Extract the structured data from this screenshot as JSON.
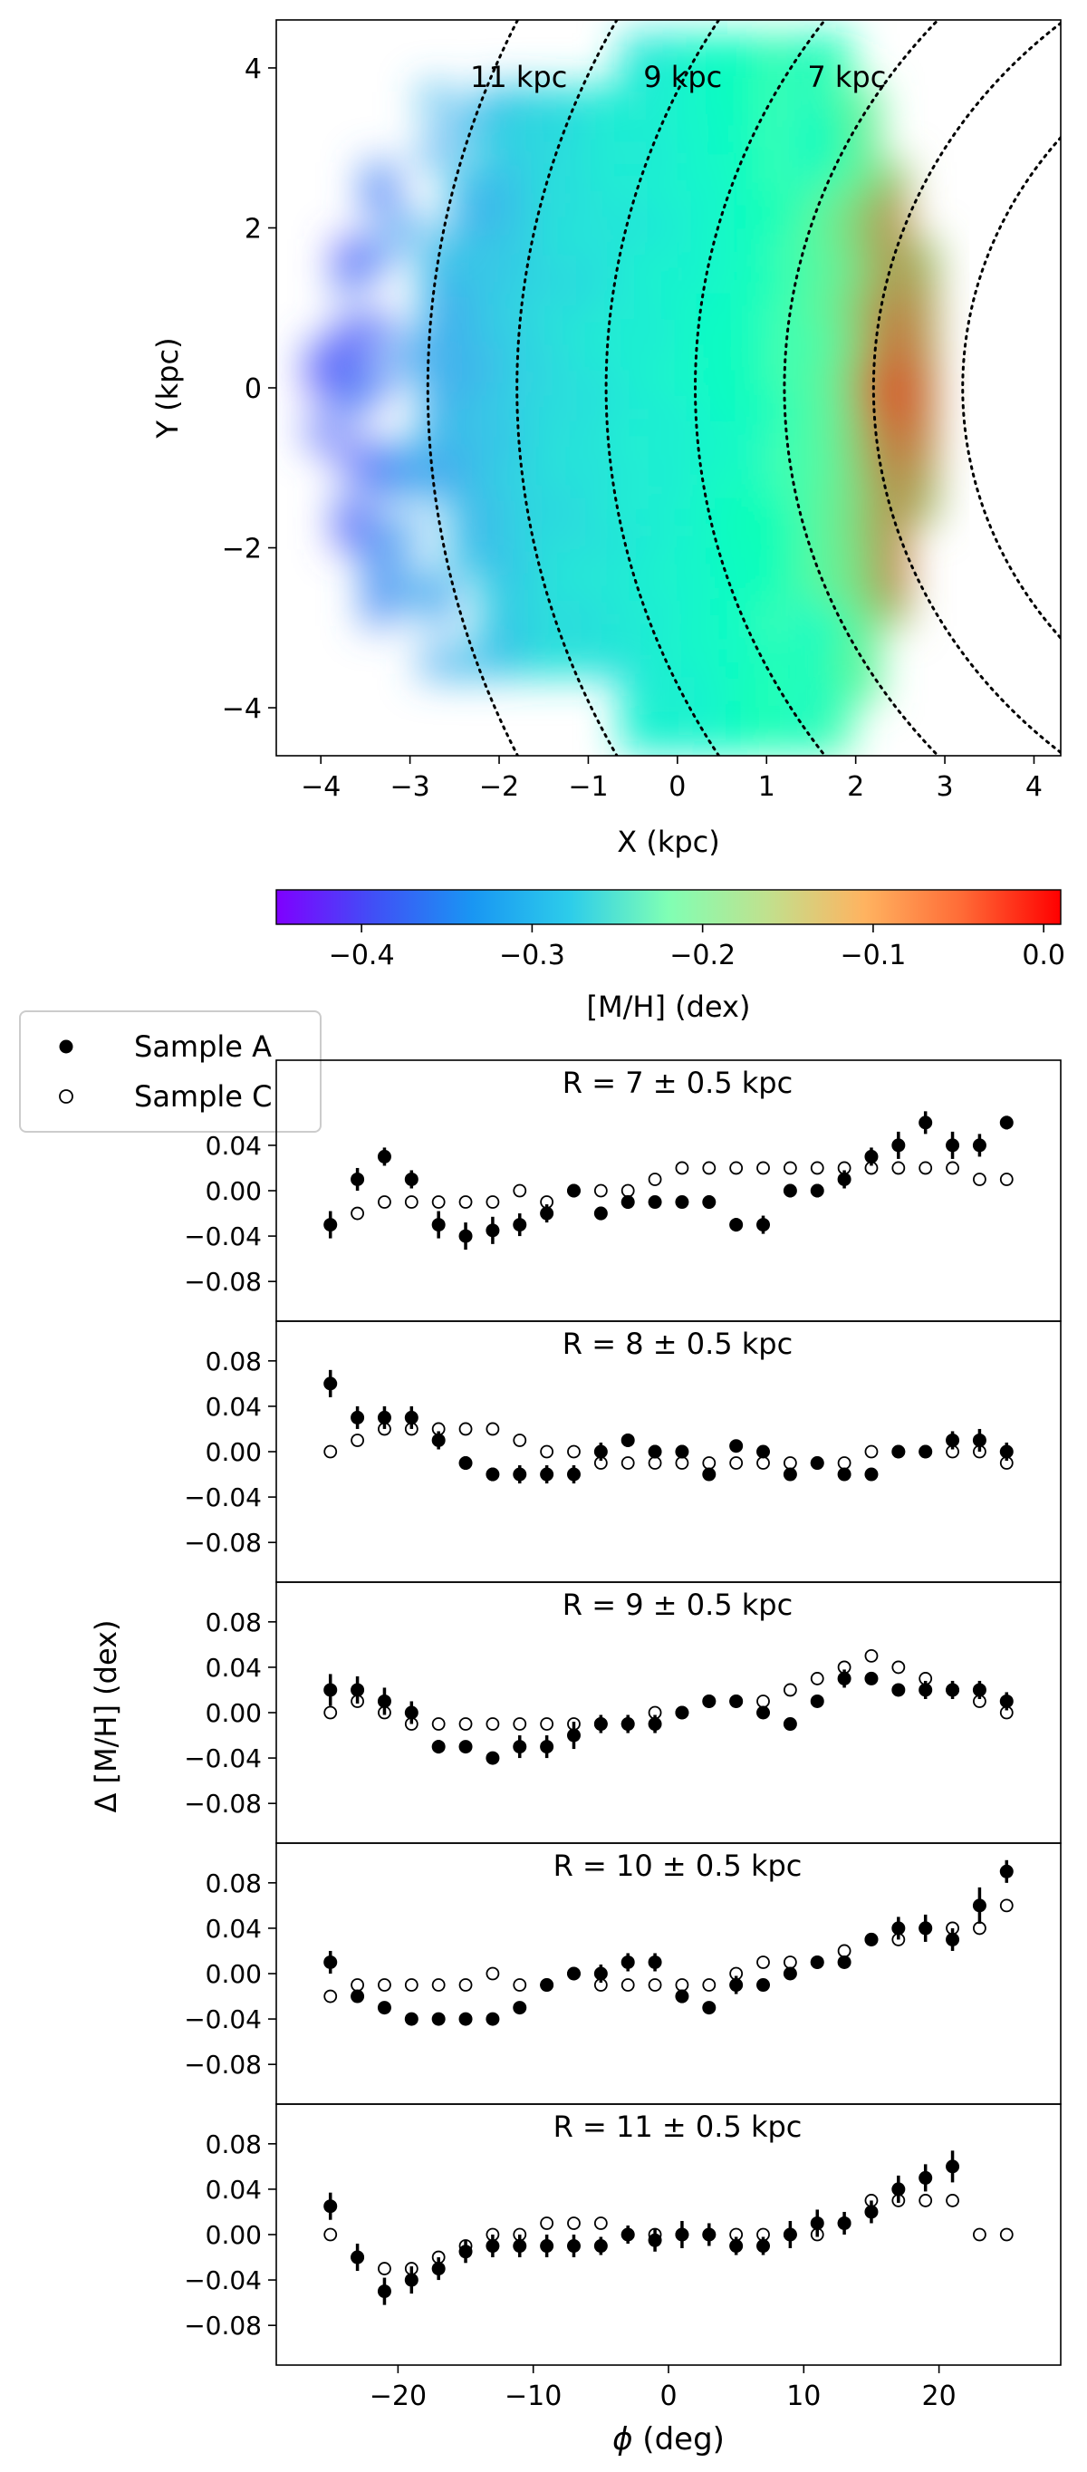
{
  "chart_data": [
    {
      "type": "heatmap",
      "xlabel": "X (kpc)",
      "ylabel": "Y (kpc)",
      "xlim": [
        -4.5,
        4.3
      ],
      "ylim": [
        -4.6,
        4.6
      ],
      "xticks": [
        -4,
        -3,
        -2,
        -1,
        0,
        1,
        2,
        3,
        4
      ],
      "yticks": [
        -4,
        -2,
        0,
        2,
        4
      ],
      "tick_labels_x": [
        "−4",
        "−3",
        "−2",
        "−1",
        "0",
        "1",
        "2",
        "3",
        "4"
      ],
      "tick_labels_y": [
        "−4",
        "−2",
        "0",
        "2",
        "4"
      ],
      "sun_x_kpc": 8.2,
      "radius_circles": [
        {
          "radius_kpc": 5,
          "label": ""
        },
        {
          "radius_kpc": 6,
          "label": ""
        },
        {
          "radius_kpc": 7,
          "label": "7 kpc"
        },
        {
          "radius_kpc": 8,
          "label": ""
        },
        {
          "radius_kpc": 9,
          "label": "9 kpc"
        },
        {
          "radius_kpc": 10,
          "label": ""
        },
        {
          "radius_kpc": 11,
          "label": "11 kpc"
        }
      ],
      "metallicity_profile": {
        "description_values": "approximate mean [M/H] by X position (kpc)",
        "x": [
          -4.2,
          -3.5,
          -3.0,
          -2.5,
          -2.0,
          -1.5,
          -1.0,
          -0.5,
          0.0,
          0.5,
          1.0,
          1.5,
          2.0,
          2.5,
          3.0
        ],
        "mh": [
          -0.4,
          -0.38,
          -0.35,
          -0.33,
          -0.32,
          -0.3,
          -0.29,
          -0.28,
          -0.27,
          -0.25,
          -0.23,
          -0.2,
          -0.15,
          -0.06,
          -0.15
        ]
      },
      "colorbar": {
        "label": "[M/H] (dex)",
        "range": [
          -0.45,
          0.01
        ],
        "ticks": [
          -0.4,
          -0.3,
          -0.2,
          -0.1,
          0.0
        ],
        "tick_labels": [
          "−0.4",
          "−0.3",
          "−0.2",
          "−0.1",
          "0.0"
        ],
        "colormap": "rainbow"
      }
    },
    {
      "type": "scatter",
      "xlabel": "φ (deg)",
      "xlabel_symbol": "ϕ",
      "xlabel_unit": " (deg)",
      "ylabel": "Δ [M/H] (dex)",
      "xlim": [
        -29,
        29
      ],
      "ylim": [
        -0.115,
        0.115
      ],
      "xticks": [
        -20,
        -10,
        0,
        10,
        20
      ],
      "xtick_labels": [
        "−20",
        "−10",
        "0",
        "10",
        "20"
      ],
      "yticks": [
        -0.08,
        -0.04,
        0.0,
        0.04,
        0.08
      ],
      "ytick_labels": [
        "−0.08",
        "−0.04",
        "0.00",
        "0.04",
        "0.08"
      ],
      "legend": {
        "location": "upper-left",
        "entries": [
          {
            "label": "Sample A",
            "marker": "filled-circle"
          },
          {
            "label": "Sample C",
            "marker": "open-circle"
          }
        ]
      },
      "phi": [
        -25,
        -23,
        -21,
        -19,
        -17,
        -15,
        -13,
        -11,
        -9,
        -7,
        -5,
        -3,
        -1,
        1,
        3,
        5,
        7,
        9,
        11,
        13,
        15,
        17,
        19,
        21,
        23,
        25
      ],
      "panels": [
        {
          "title": "R = 7 ± 0.5 kpc",
          "sample_a": [
            -0.03,
            0.01,
            0.03,
            0.01,
            -0.03,
            -0.04,
            -0.035,
            -0.03,
            -0.02,
            0.0,
            -0.02,
            -0.01,
            -0.01,
            -0.01,
            -0.01,
            -0.03,
            -0.03,
            0.0,
            0.0,
            0.01,
            0.03,
            0.04,
            0.06,
            0.04,
            0.04,
            0.06
          ],
          "sample_c": [
            null,
            -0.02,
            -0.01,
            -0.01,
            -0.01,
            -0.01,
            -0.01,
            0.0,
            -0.01,
            0.0,
            0.0,
            0.0,
            0.01,
            0.02,
            0.02,
            0.02,
            0.02,
            0.02,
            0.02,
            0.02,
            0.02,
            0.02,
            0.02,
            0.02,
            0.01,
            0.01
          ],
          "err_a": [
            0.012,
            0.01,
            0.008,
            0.008,
            0.012,
            0.012,
            0.012,
            0.01,
            0.008,
            0.006,
            0.006,
            0.006,
            0.004,
            0.004,
            0.006,
            0.006,
            0.008,
            0.006,
            0.006,
            0.008,
            0.008,
            0.012,
            0.01,
            0.012,
            0.01,
            0.006
          ]
        },
        {
          "title": "R = 8 ± 0.5 kpc",
          "sample_a": [
            0.06,
            0.03,
            0.03,
            0.03,
            0.01,
            -0.01,
            -0.02,
            -0.02,
            -0.02,
            -0.02,
            0.0,
            0.01,
            0.0,
            0.0,
            -0.02,
            0.005,
            0.0,
            -0.02,
            -0.01,
            -0.02,
            -0.02,
            0.0,
            0.0,
            0.01,
            0.01,
            0.0
          ],
          "sample_c": [
            0.0,
            0.01,
            0.02,
            0.02,
            0.02,
            0.02,
            0.02,
            0.01,
            0.0,
            0.0,
            -0.01,
            -0.01,
            -0.01,
            -0.01,
            -0.01,
            -0.01,
            -0.01,
            -0.01,
            -0.01,
            -0.01,
            0.0,
            0.0,
            0.0,
            0.0,
            0.0,
            -0.01
          ],
          "err_a": [
            0.012,
            0.01,
            0.01,
            0.01,
            0.008,
            0.006,
            0.006,
            0.008,
            0.008,
            0.008,
            0.008,
            0.006,
            0.006,
            0.006,
            0.004,
            0.004,
            0.004,
            0.004,
            0.004,
            0.004,
            0.004,
            0.004,
            0.004,
            0.008,
            0.01,
            0.008
          ]
        },
        {
          "title": "R = 9 ± 0.5 kpc",
          "sample_a": [
            0.02,
            0.02,
            0.01,
            0.0,
            -0.03,
            -0.03,
            -0.04,
            -0.03,
            -0.03,
            -0.02,
            -0.01,
            -0.01,
            -0.01,
            0.0,
            0.01,
            0.01,
            0.0,
            -0.01,
            0.01,
            0.03,
            0.03,
            0.02,
            0.02,
            0.02,
            0.02,
            0.01
          ],
          "sample_c": [
            0.0,
            0.01,
            0.0,
            -0.01,
            -0.01,
            -0.01,
            -0.01,
            -0.01,
            -0.01,
            -0.01,
            -0.01,
            -0.01,
            0.0,
            0.0,
            0.01,
            0.01,
            0.01,
            0.02,
            0.03,
            0.04,
            0.05,
            0.04,
            0.03,
            0.02,
            0.01,
            0.0
          ],
          "err_a": [
            0.014,
            0.012,
            0.012,
            0.01,
            0.006,
            0.004,
            0.004,
            0.01,
            0.01,
            0.012,
            0.008,
            0.008,
            0.008,
            0.004,
            0.004,
            0.004,
            0.004,
            0.004,
            0.004,
            0.008,
            0.004,
            0.004,
            0.008,
            0.008,
            0.008,
            0.008
          ]
        },
        {
          "title": "R = 10 ± 0.5 kpc",
          "sample_a": [
            0.01,
            -0.02,
            -0.03,
            -0.04,
            -0.04,
            -0.04,
            -0.04,
            -0.03,
            -0.01,
            0.0,
            0.0,
            0.01,
            0.01,
            -0.02,
            -0.03,
            -0.01,
            -0.01,
            0.0,
            0.01,
            0.01,
            0.03,
            0.04,
            0.04,
            0.03,
            0.06,
            0.09
          ],
          "sample_c": [
            -0.02,
            -0.01,
            -0.01,
            -0.01,
            -0.01,
            -0.01,
            0.0,
            -0.01,
            -0.01,
            0.0,
            -0.01,
            -0.01,
            -0.01,
            -0.01,
            -0.01,
            0.0,
            0.01,
            0.01,
            0.01,
            0.02,
            0.03,
            0.03,
            0.04,
            0.04,
            0.04,
            0.06
          ],
          "err_a": [
            0.01,
            0.004,
            0.004,
            0.004,
            0.004,
            0.004,
            0.004,
            0.004,
            0.004,
            0.004,
            0.008,
            0.008,
            0.008,
            0.006,
            0.004,
            0.008,
            0.004,
            0.004,
            0.004,
            0.004,
            0.004,
            0.01,
            0.012,
            0.01,
            0.016,
            0.01
          ]
        },
        {
          "title": "R = 11 ± 0.5 kpc",
          "sample_a": [
            0.025,
            -0.02,
            -0.05,
            -0.04,
            -0.03,
            -0.015,
            -0.01,
            -0.01,
            -0.01,
            -0.01,
            -0.01,
            0.0,
            -0.005,
            0.0,
            0.0,
            -0.01,
            -0.01,
            0.0,
            0.01,
            0.01,
            0.02,
            0.04,
            0.05,
            0.06,
            null,
            null
          ],
          "sample_c": [
            0.0,
            -0.02,
            -0.03,
            -0.03,
            -0.02,
            -0.01,
            0.0,
            0.0,
            0.01,
            0.01,
            0.01,
            0.0,
            0.0,
            0.0,
            0.0,
            0.0,
            0.0,
            0.0,
            0.0,
            0.01,
            0.03,
            0.03,
            0.03,
            0.03,
            0.0,
            0.0
          ],
          "err_a": [
            0.012,
            0.012,
            0.012,
            0.012,
            0.01,
            0.01,
            0.01,
            0.01,
            0.01,
            0.01,
            0.008,
            0.008,
            0.01,
            0.012,
            0.01,
            0.008,
            0.008,
            0.012,
            0.012,
            0.01,
            0.01,
            0.012,
            0.012,
            0.014,
            null,
            null
          ]
        }
      ]
    }
  ]
}
